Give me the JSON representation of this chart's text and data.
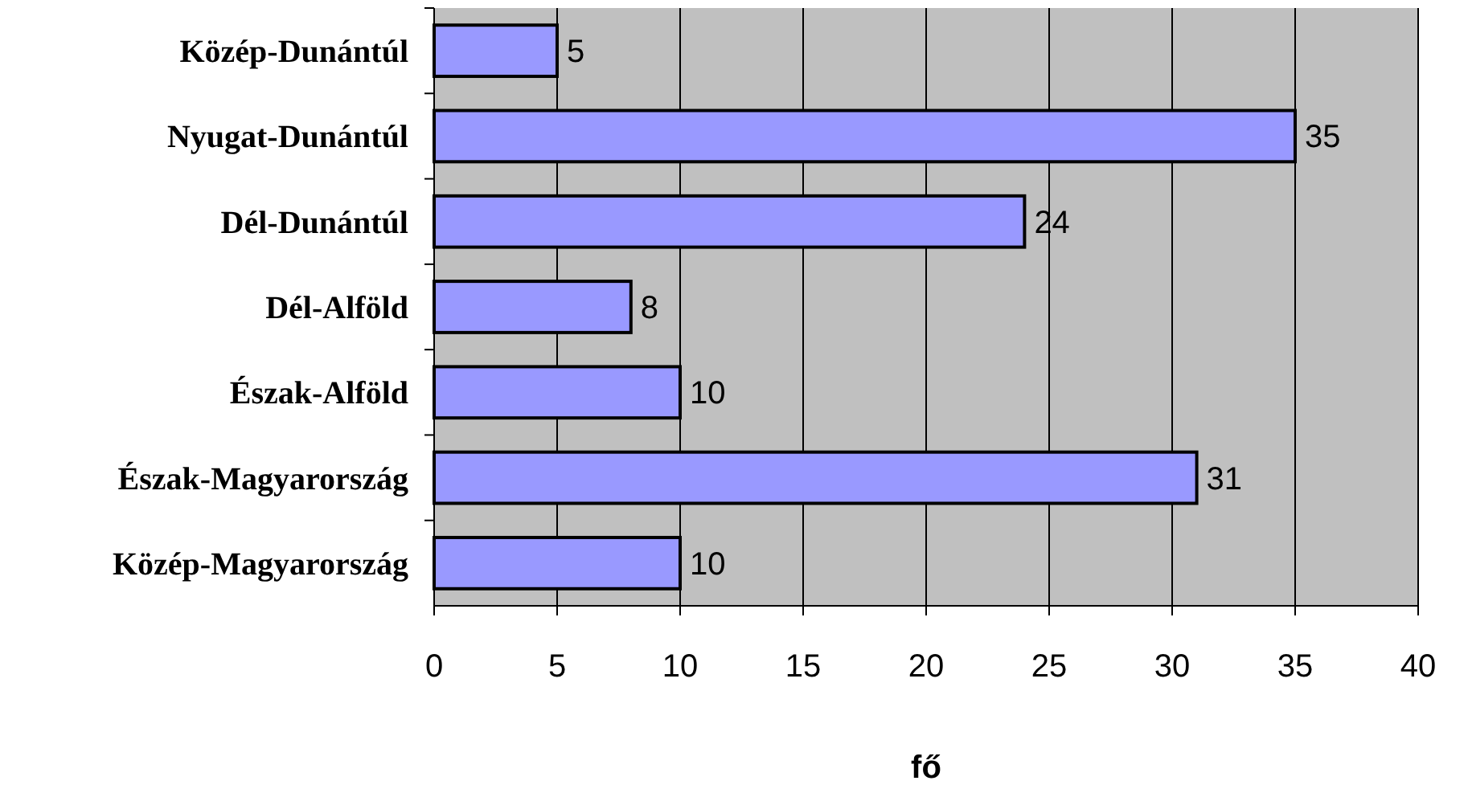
{
  "chart_data": {
    "type": "bar",
    "orientation": "horizontal",
    "categories": [
      "Közép-Dunántúl",
      "Nyugat-Dunántúl",
      "Dél-Dunántúl",
      "Dél-Alföld",
      "Észak-Alföld",
      "Észak-Magyarország",
      "Közép-Magyarország"
    ],
    "values": [
      5,
      35,
      24,
      8,
      10,
      31,
      10
    ],
    "color": "#9999ff",
    "xlim": [
      0,
      40
    ],
    "xticks": [
      0,
      5,
      10,
      15,
      20,
      25,
      30,
      35,
      40
    ],
    "xlabel": "fő",
    "grid": "x",
    "data_labels": true
  }
}
